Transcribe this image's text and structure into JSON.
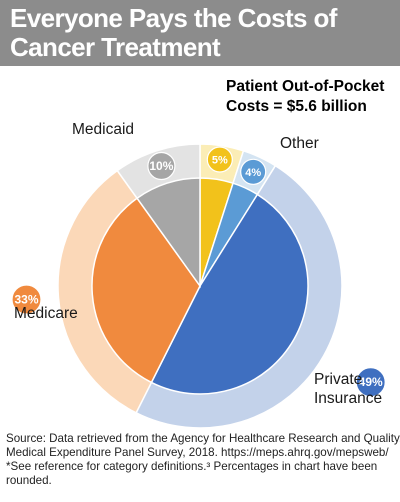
{
  "header": {
    "title_line1": "Everyone Pays the Costs of",
    "title_line2": "Cancer Treatment"
  },
  "annotation": {
    "line1": "Patient Out-of-Pocket",
    "line2": "Costs = $5.6 billion"
  },
  "chart_data": {
    "type": "pie",
    "title": "Everyone Pays the Costs of Cancer Treatment",
    "slices": [
      {
        "name": "Patient Out-of-Pocket",
        "value": 5,
        "label": "5%",
        "color": "#f2c21b",
        "ring_color": "#fbedb6"
      },
      {
        "name": "Other",
        "value": 4,
        "label": "4%",
        "color": "#5b9bd5",
        "ring_color": "#d4e4f2"
      },
      {
        "name": "Private Insurance",
        "value": 49,
        "label": "49%",
        "color": "#3f6fc0",
        "ring_color": "#c3d2ea"
      },
      {
        "name": "Medicare",
        "value": 33,
        "label": "33%",
        "color": "#f08a3e",
        "ring_color": "#fbd8b8"
      },
      {
        "name": "Medicaid",
        "value": 10,
        "label": "10%",
        "color": "#a6a6a6",
        "ring_color": "#e3e3e3"
      }
    ],
    "category_labels": {
      "Other": "Other",
      "Medicaid": "Medicaid",
      "Medicare": "Medicare",
      "Private Insurance": [
        "Private",
        "Insurance"
      ]
    },
    "start_angle_deg": 0,
    "direction": "clockwise"
  },
  "footer": {
    "line1": "Source: Data retrieved from the Agency for Healthcare Research and Quality.",
    "line2": "Medical Expenditure Panel Survey, 2018. https://meps.ahrq.gov/mepsweb/",
    "line3": "*See reference for category definitions.³ Percentages in chart have been",
    "line4": "rounded."
  }
}
